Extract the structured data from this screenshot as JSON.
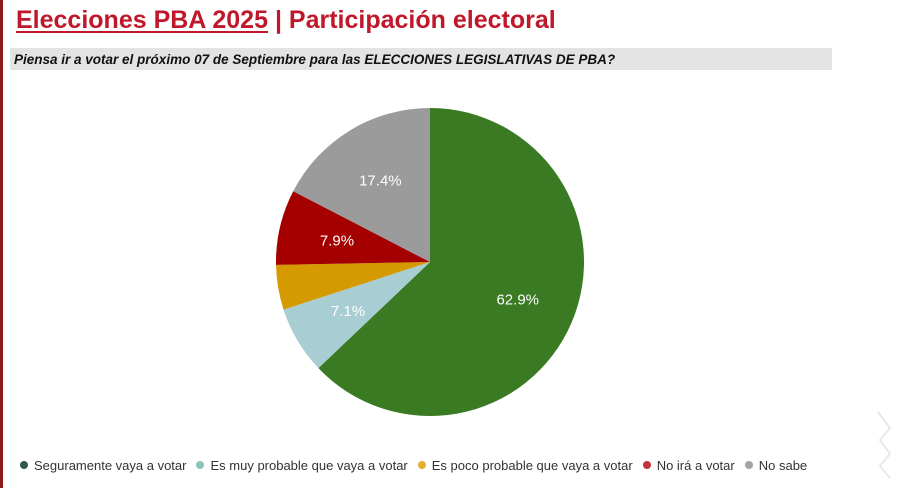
{
  "header": {
    "title": "Elecciones PBA 2025",
    "separator": "|",
    "subtitle": "Participación electoral"
  },
  "question": "Piensa ir a votar el próximo 07 de Septiembre para las ELECCIONES LEGISLATIVAS DE PBA?",
  "chart_data": {
    "type": "pie",
    "title": "Piensa ir a votar el próximo 07 de Septiembre para las ELECCIONES LEGISLATIVAS DE PBA?",
    "categories": [
      "Seguramente vaya a votar",
      "Es muy probable que vaya a votar",
      "Es poco probable que vaya a votar",
      "No irá a votar",
      "No sabe"
    ],
    "values": [
      62.9,
      7.1,
      4.7,
      7.9,
      17.4
    ],
    "labels": [
      "62.9%",
      "7.1%",
      "",
      "7.9%",
      "17.4%"
    ],
    "colors": [
      "#3a7a23",
      "#a8cdd2",
      "#d49a00",
      "#a40000",
      "#9b9b9b"
    ],
    "legend_dot_colors": [
      "#2f5a4f",
      "#8cc4bb",
      "#e2b02a",
      "#c8303c",
      "#a3a3a3"
    ],
    "legend_position": "bottom",
    "start": "12 o'clock",
    "direction": "clockwise"
  }
}
